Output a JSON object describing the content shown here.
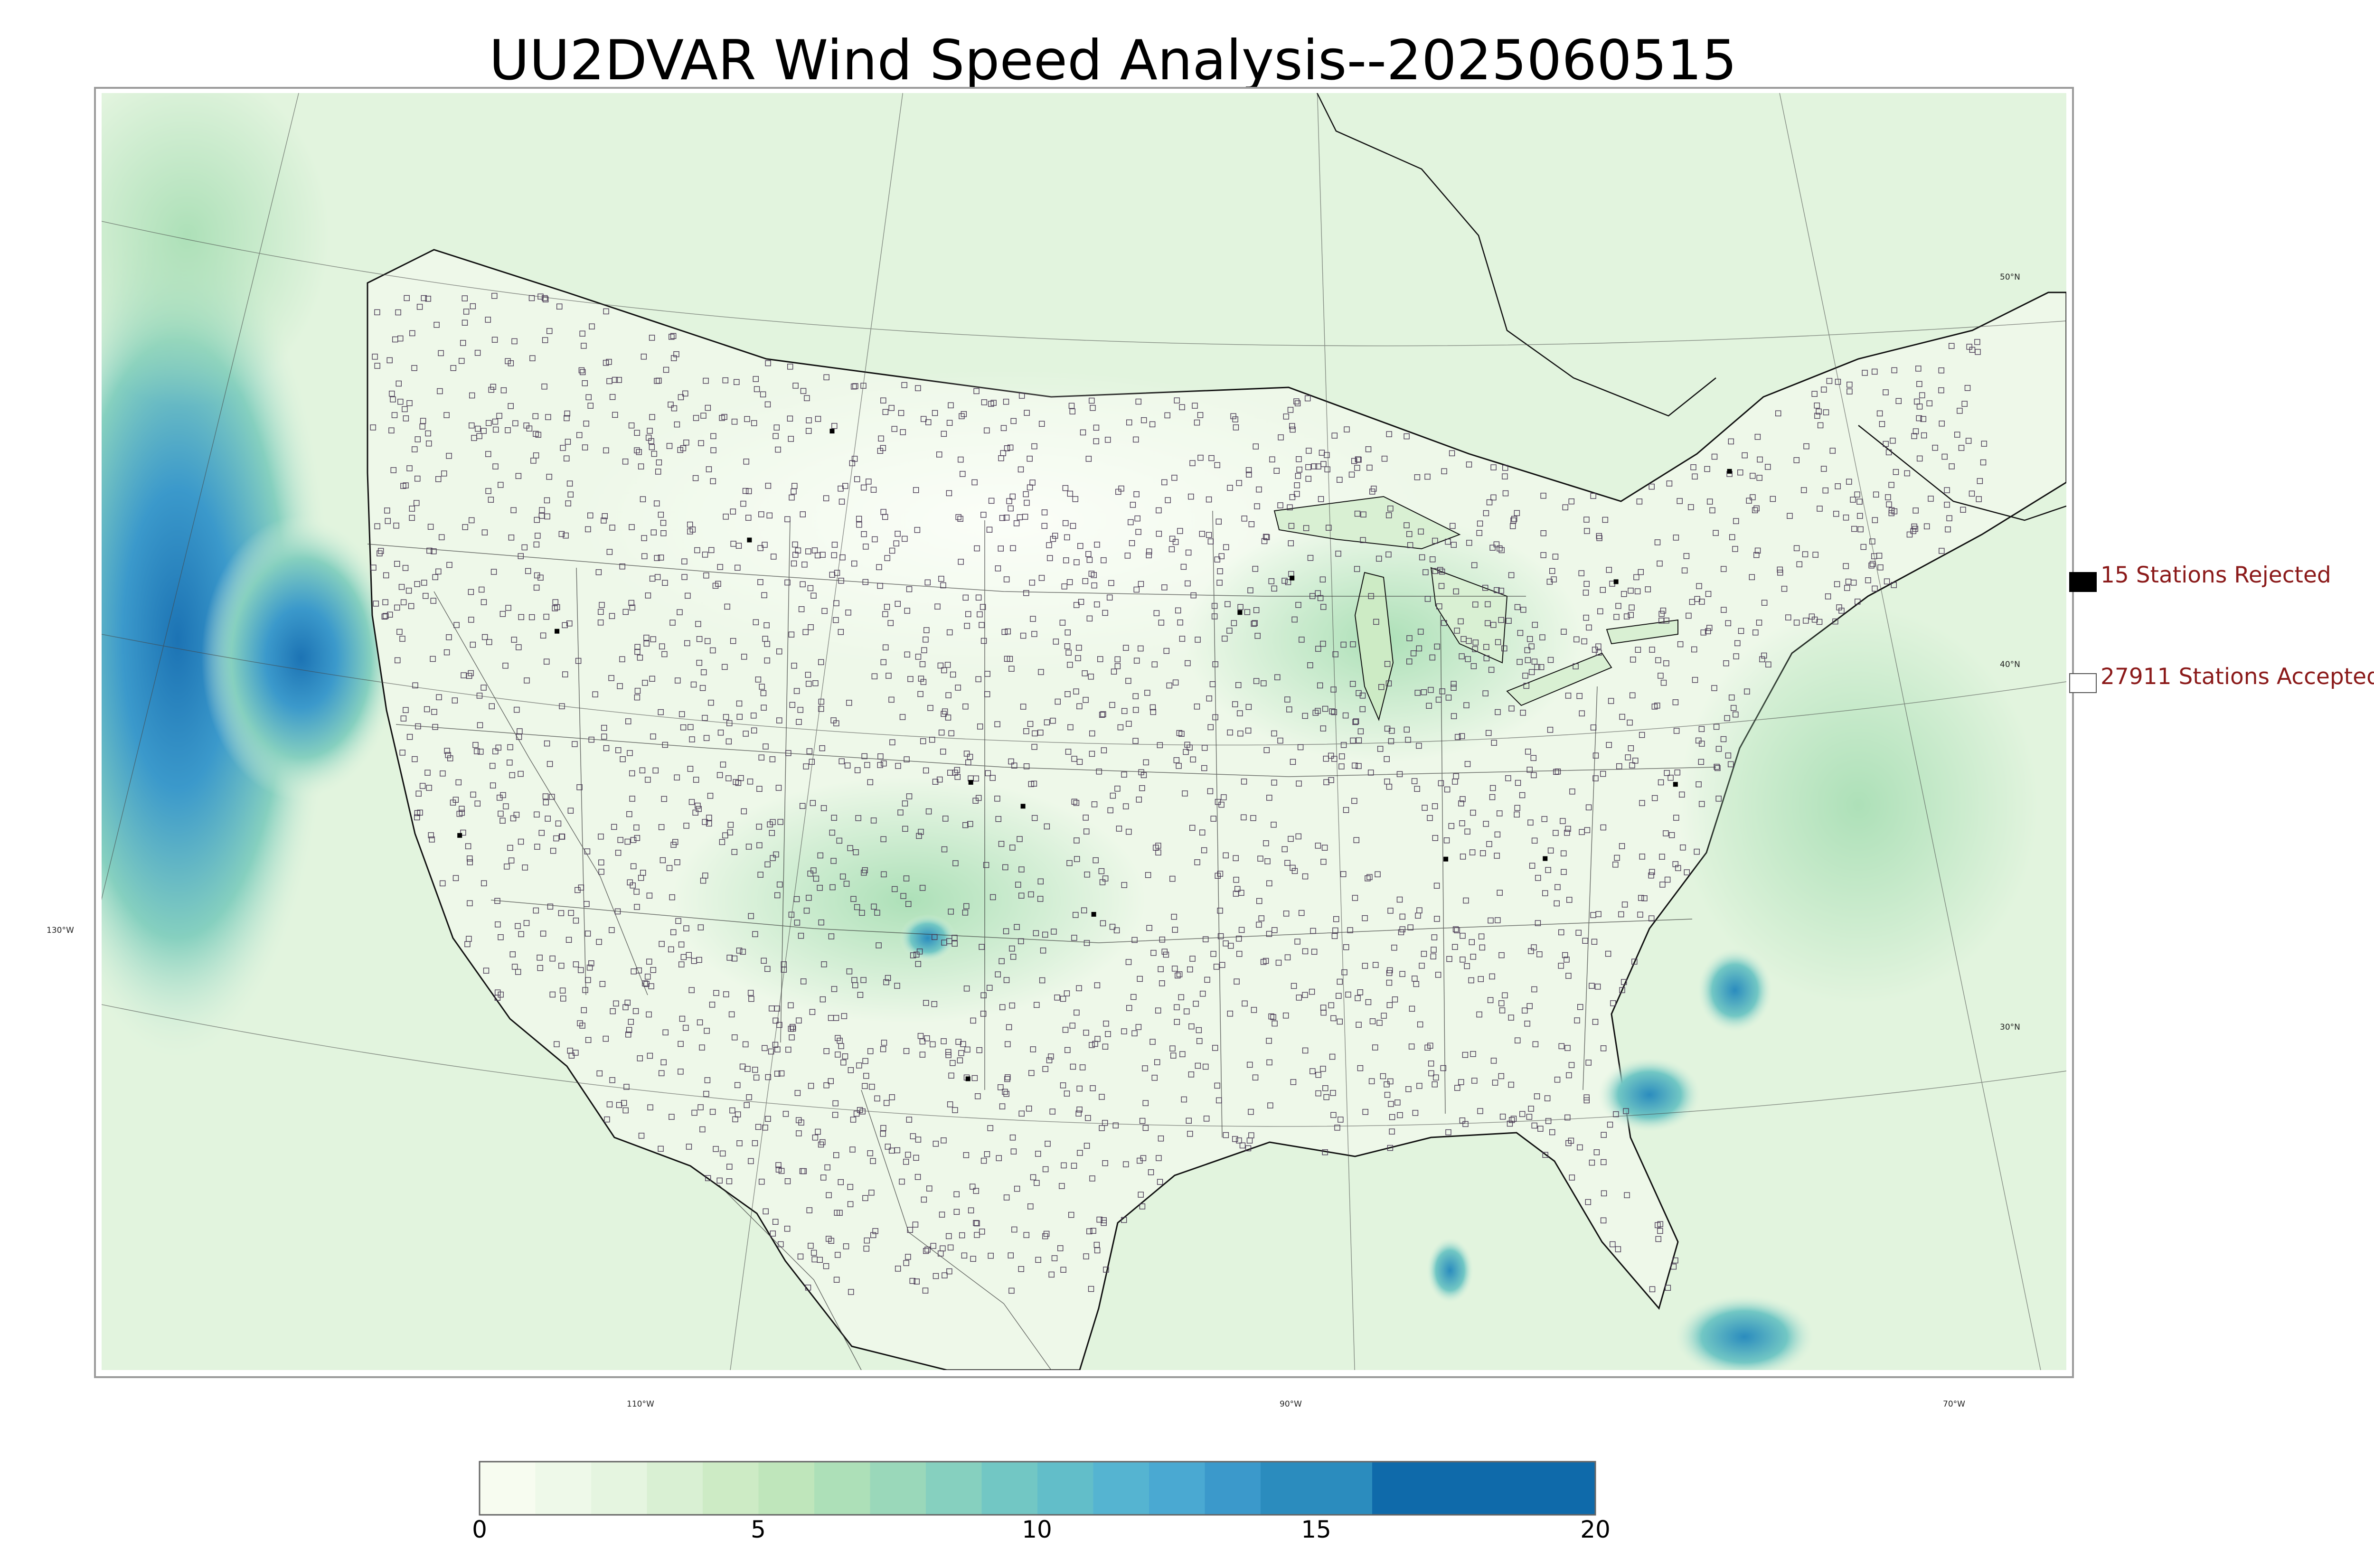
{
  "title": "UU2DVAR Wind Speed Analysis--2025060515",
  "longitude_labels": [
    "130°W",
    "110°W",
    "90°W",
    "70°W"
  ],
  "latitude_labels": [
    "50°N",
    "40°N",
    "30°N"
  ],
  "legend": {
    "rejected": {
      "label": "15 Stations Rejected",
      "count": 15,
      "swatch_color": "#000000"
    },
    "accepted": {
      "label": "27911 Stations Accepted",
      "count": 27911,
      "swatch_color": "#ffffff"
    }
  },
  "colorbar": {
    "ticks": [
      "0",
      "5",
      "10",
      "15",
      "20"
    ],
    "min": 0,
    "max": 20,
    "bins": [
      {
        "from": 0,
        "to": 1,
        "color": "#f7fcf0"
      },
      {
        "from": 1,
        "to": 2,
        "color": "#eef9e9"
      },
      {
        "from": 2,
        "to": 3,
        "color": "#e5f5e0"
      },
      {
        "from": 3,
        "to": 4,
        "color": "#d9f0d3"
      },
      {
        "from": 4,
        "to": 5,
        "color": "#cdebc5"
      },
      {
        "from": 5,
        "to": 6,
        "color": "#bfe6bb"
      },
      {
        "from": 6,
        "to": 7,
        "color": "#ade0b8"
      },
      {
        "from": 7,
        "to": 8,
        "color": "#9ad8ba"
      },
      {
        "from": 8,
        "to": 9,
        "color": "#86d0bf"
      },
      {
        "from": 9,
        "to": 10,
        "color": "#72c7c4"
      },
      {
        "from": 10,
        "to": 11,
        "color": "#62bec9"
      },
      {
        "from": 11,
        "to": 12,
        "color": "#55b4d1"
      },
      {
        "from": 12,
        "to": 13,
        "color": "#4aa9d2"
      },
      {
        "from": 13,
        "to": 14,
        "color": "#3b99cb"
      },
      {
        "from": 14,
        "to": 16,
        "color": "#2b8cbe"
      },
      {
        "from": 16,
        "to": 20,
        "color": "#0f6aaa"
      }
    ]
  },
  "colors": {
    "ocean_base": "#e2f4de",
    "land_base": "#eaf7e4",
    "strong_wind": "#2b8cbe",
    "max_wind": "#0f6aaa",
    "coastline": "#111111",
    "state_lines": "#333333",
    "graticule": "#444444"
  }
}
